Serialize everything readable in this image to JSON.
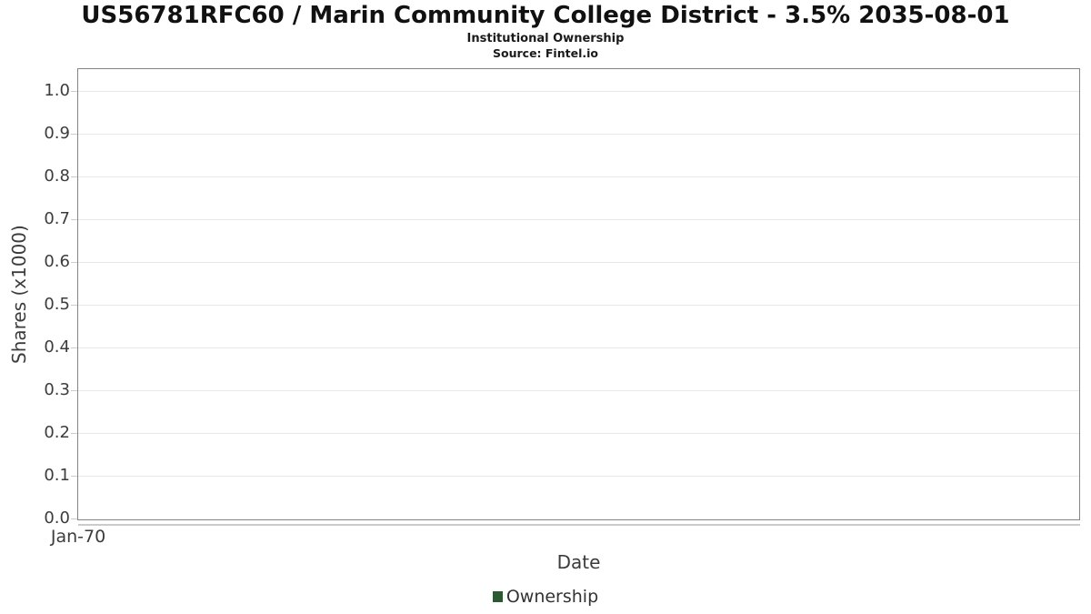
{
  "chart_data": {
    "type": "column",
    "title": "US56781RFC60 / Marin Community College District - 3.5% 2035-08-01",
    "subtitle": "Institutional Ownership",
    "source": "Source: Fintel.io",
    "xlabel": "Date",
    "ylabel": "Shares (x1000)",
    "ylim": [
      0.0,
      1.05
    ],
    "yticks": [
      1.0,
      0.9,
      0.8,
      0.7,
      0.6,
      0.5,
      0.4,
      0.3,
      0.2,
      0.1,
      0.0
    ],
    "xticks": [
      {
        "label": "Jan-70",
        "pos": 0
      }
    ],
    "grid": "horizontal-only",
    "legend_position": "bottom",
    "series": [
      {
        "name": "Ownership",
        "color": "#2a5934",
        "values": []
      }
    ]
  },
  "colors": {
    "plot_border": "#848484",
    "gridline": "#e8e8e8",
    "tick": "#cccccc",
    "x_axis_line": "#cbcbcb",
    "axis_text": "#3c3c3c",
    "title_text": "#111111",
    "legend_marker": "#2a5934"
  }
}
